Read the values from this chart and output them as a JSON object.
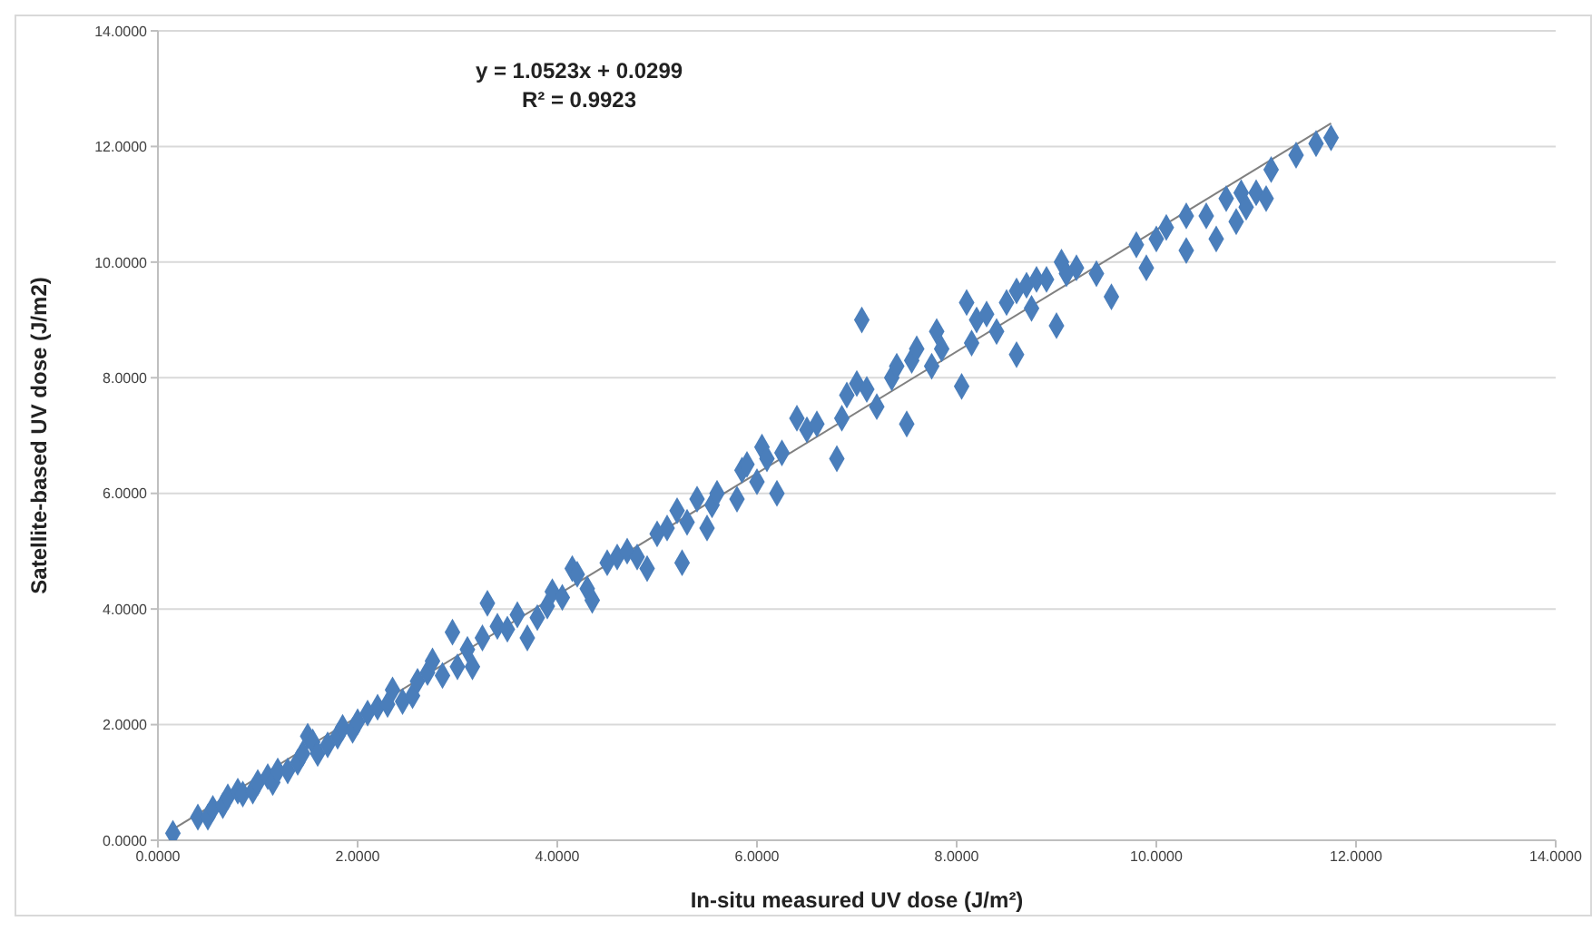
{
  "chart_data": {
    "type": "scatter",
    "xlabel": "In-situ measured UV dose (J/m²)",
    "ylabel": "Satellite-based UV dose (J/m2)",
    "annotations": [
      "y = 1.0523x + 0.0299",
      "R² = 0.9923"
    ],
    "xlim": [
      0,
      14
    ],
    "ylim": [
      0,
      14
    ],
    "xticks": [
      {
        "value": 0,
        "label": "0.0000"
      },
      {
        "value": 2,
        "label": "2.0000"
      },
      {
        "value": 4,
        "label": "4.0000"
      },
      {
        "value": 6,
        "label": "6.0000"
      },
      {
        "value": 8,
        "label": "8.0000"
      },
      {
        "value": 10,
        "label": "10.0000"
      },
      {
        "value": 12,
        "label": "12.0000"
      },
      {
        "value": 14,
        "label": "14.0000"
      }
    ],
    "yticks": [
      {
        "value": 0,
        "label": "0.0000"
      },
      {
        "value": 2,
        "label": "2.0000"
      },
      {
        "value": 4,
        "label": "4.0000"
      },
      {
        "value": 6,
        "label": "6.0000"
      },
      {
        "value": 8,
        "label": "8.0000"
      },
      {
        "value": 10,
        "label": "10.0000"
      },
      {
        "value": 12,
        "label": "12.0000"
      },
      {
        "value": 14,
        "label": "14.0000"
      }
    ],
    "grid": "y",
    "marker": "diamond",
    "series": [
      {
        "color": "#4a7ebb",
        "x": [
          0.15,
          0.4,
          0.5,
          0.55,
          0.65,
          0.7,
          0.8,
          0.85,
          0.95,
          1.0,
          1.1,
          1.15,
          1.2,
          1.3,
          1.4,
          1.45,
          1.5,
          1.55,
          1.6,
          1.7,
          1.8,
          1.85,
          1.95,
          2.0,
          2.1,
          2.2,
          2.3,
          2.35,
          2.45,
          2.55,
          2.6,
          2.7,
          2.75,
          2.85,
          2.95,
          3.0,
          3.1,
          3.15,
          3.25,
          3.3,
          3.4,
          3.5,
          3.6,
          3.7,
          3.8,
          3.9,
          3.95,
          4.05,
          4.15,
          4.2,
          4.3,
          4.35,
          4.5,
          4.6,
          4.7,
          4.8,
          4.9,
          5.0,
          5.1,
          5.2,
          5.25,
          5.3,
          5.4,
          5.5,
          5.55,
          5.6,
          5.8,
          5.85,
          5.9,
          6.0,
          6.05,
          6.1,
          6.2,
          6.25,
          6.4,
          6.5,
          6.6,
          6.8,
          6.85,
          6.9,
          7.0,
          7.05,
          7.1,
          7.2,
          7.35,
          7.4,
          7.5,
          7.55,
          7.6,
          7.75,
          7.8,
          7.85,
          8.05,
          8.1,
          8.15,
          8.2,
          8.3,
          8.4,
          8.5,
          8.6,
          8.6,
          8.7,
          8.75,
          8.8,
          8.9,
          9.0,
          9.05,
          9.1,
          9.2,
          9.4,
          9.55,
          9.8,
          9.9,
          10.0,
          10.1,
          10.3,
          10.3,
          10.5,
          10.6,
          10.7,
          10.8,
          10.85,
          10.9,
          11.0,
          11.1,
          11.15,
          11.4,
          11.6,
          11.75
        ],
        "values": [
          0.12,
          0.4,
          0.4,
          0.55,
          0.6,
          0.75,
          0.85,
          0.8,
          0.85,
          1.0,
          1.1,
          1.0,
          1.2,
          1.2,
          1.35,
          1.5,
          1.8,
          1.7,
          1.5,
          1.65,
          1.8,
          1.95,
          1.9,
          2.05,
          2.2,
          2.3,
          2.35,
          2.6,
          2.4,
          2.5,
          2.75,
          2.9,
          3.1,
          2.85,
          3.6,
          3.0,
          3.3,
          3.0,
          3.5,
          4.1,
          3.7,
          3.65,
          3.9,
          3.5,
          3.85,
          4.05,
          4.3,
          4.2,
          4.7,
          4.6,
          4.35,
          4.15,
          4.8,
          4.9,
          5.0,
          4.9,
          4.7,
          5.3,
          5.4,
          5.7,
          4.8,
          5.5,
          5.9,
          5.4,
          5.8,
          6.0,
          5.9,
          6.4,
          6.5,
          6.2,
          6.8,
          6.6,
          6.0,
          6.7,
          7.3,
          7.1,
          7.2,
          6.6,
          7.3,
          7.7,
          7.9,
          9.0,
          7.8,
          7.5,
          8.0,
          8.2,
          7.2,
          8.3,
          8.5,
          8.2,
          8.8,
          8.5,
          7.85,
          9.3,
          8.6,
          9.0,
          9.1,
          8.8,
          9.3,
          9.5,
          8.4,
          9.6,
          9.2,
          9.7,
          9.7,
          8.9,
          10.0,
          9.8,
          9.9,
          9.8,
          9.4,
          10.3,
          9.9,
          10.4,
          10.6,
          10.8,
          10.2,
          10.8,
          10.4,
          11.1,
          10.7,
          11.2,
          10.95,
          11.2,
          11.1,
          11.6,
          11.85,
          12.05,
          12.15
        ]
      },
      {
        "type": "line",
        "marker": "none",
        "color": "#808080",
        "x": [
          0.15,
          11.75
        ],
        "values": [
          0.19,
          12.4
        ]
      }
    ]
  }
}
